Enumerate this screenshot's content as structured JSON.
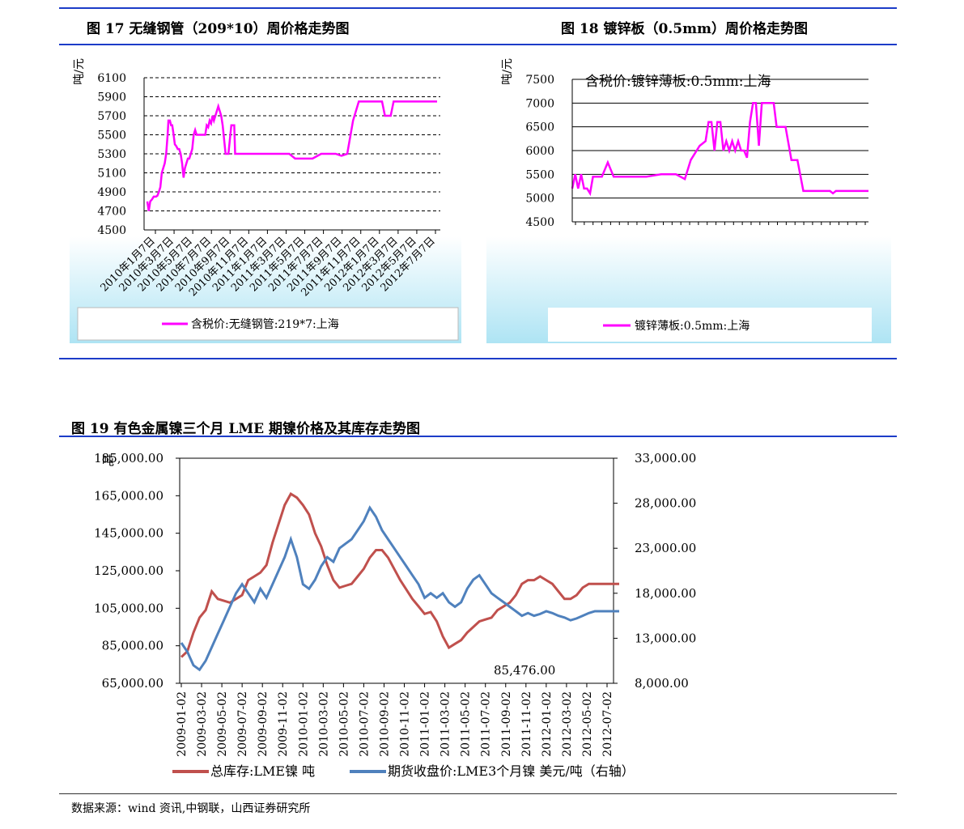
{
  "fig17": {
    "caption": "图 17 无缝钢管（209*10）周价格走势图",
    "unit": "吨/元",
    "legend": "含税价:无缝钢管:219*7:上海",
    "color": "#ff00ff"
  },
  "fig18": {
    "caption": "图 18 镀锌板（0.5mm）周价格走势图",
    "unit": "吨/元",
    "series_title": "含税价:镀锌薄板:0.5mm:上海",
    "legend": "镀锌薄板:0.5mm:上海",
    "color": "#ff00ff"
  },
  "fig19": {
    "caption": "图 19 有色金属镍三个月 LME 期镍价格及其库存走势图",
    "left_unit": "吨",
    "annotation": "85,476.00",
    "legend_inventory": "总库存:LME镍 吨",
    "legend_price": "期货收盘价:LME3个月镍 美元/吨（右轴）",
    "inventory_color": "#c0504d",
    "price_color": "#4f81bd"
  },
  "source": "数据来源：wind 资讯,中钢联，山西证券研究所",
  "chart_data": [
    {
      "type": "line",
      "title": "图 17 无缝钢管（209*10）周价格走势图",
      "ylabel": "吨/元",
      "ylim": [
        4500,
        6100
      ],
      "yticks": [
        4500,
        4700,
        4900,
        5100,
        5300,
        5500,
        5700,
        5900,
        6100
      ],
      "xticks": [
        "2010年1月7日",
        "2010年3月7日",
        "2010年5月7日",
        "2010年7月7日",
        "2010年9月7日",
        "2010年11月7日",
        "2011年1月7日",
        "2011年3月7日",
        "2011年5月7日",
        "2011年7月7日",
        "2011年9月7日",
        "2011年11月7日",
        "2012年1月7日",
        "2012年3月7日",
        "2012年5月7日",
        "2012年7月7日"
      ],
      "grid": true,
      "legend_position": "bottom",
      "series": [
        {
          "name": "含税价:无缝钢管:219*7:上海",
          "x": [
            0,
            0.5,
            1,
            1.6,
            2.2,
            3,
            3.5,
            4,
            4.5,
            5,
            5.5,
            6,
            6.5,
            7,
            7.3,
            7.8,
            8.2,
            8.6,
            9,
            9.5,
            10,
            10.5,
            11,
            11.5,
            12,
            12.5,
            13,
            13.5,
            14,
            14.5,
            15,
            15.5,
            16,
            16.5,
            17,
            17.5,
            18,
            18.5,
            19,
            19.5,
            20,
            20.5,
            21,
            21.5,
            22,
            22.5,
            23,
            23.5,
            24,
            24.5,
            25,
            25.5,
            26,
            27,
            28,
            29,
            30,
            30.3,
            30.7,
            31,
            31.5,
            32,
            32.5,
            33,
            33.5,
            34,
            34.5,
            35,
            35.5,
            36,
            37,
            38,
            40,
            43,
            45,
            47,
            49,
            51,
            53,
            55,
            57,
            60,
            63,
            65,
            67,
            69,
            71,
            73,
            75,
            77,
            79,
            80,
            81,
            82,
            83,
            84,
            85,
            86,
            87,
            88,
            89,
            90,
            91,
            92,
            93,
            94,
            95,
            96,
            97,
            98,
            99,
            100
          ],
          "y": [
            4800,
            4700,
            4800,
            4820,
            4850,
            4850,
            4860,
            4900,
            4950,
            5100,
            5150,
            5200,
            5300,
            5500,
            5650,
            5650,
            5600,
            5600,
            5520,
            5400,
            5380,
            5350,
            5350,
            5300,
            5200,
            5050,
            5150,
            5200,
            5250,
            5250,
            5300,
            5350,
            5500,
            5550,
            5500,
            5500,
            5500,
            5500,
            5500,
            5500,
            5500,
            5600,
            5580,
            5650,
            5620,
            5700,
            5650,
            5700,
            5750,
            5800,
            5750,
            5700,
            5600,
            5300,
            5300,
            5600,
            5600,
            5300,
            5300,
            5300,
            5300,
            5300,
            5300,
            5300,
            5300,
            5300,
            5300,
            5300,
            5300,
            5300,
            5300,
            5300,
            5300,
            5300,
            5300,
            5300,
            5300,
            5250,
            5250,
            5250,
            5250,
            5300,
            5300,
            5300,
            5280,
            5300,
            5650,
            5850,
            5850,
            5850,
            5850,
            5850,
            5850,
            5700,
            5700,
            5700,
            5850,
            5850,
            5850,
            5850,
            5850,
            5850,
            5850,
            5850,
            5850,
            5850,
            5850,
            5850,
            5850,
            5850,
            5850,
            5850
          ]
        }
      ]
    },
    {
      "type": "line",
      "title": "图 18 镀锌板（0.5mm）周价格走势图",
      "ylabel": "吨/元",
      "ylim": [
        4500,
        7500
      ],
      "yticks": [
        4500,
        5000,
        5500,
        6000,
        6500,
        7000,
        7500
      ],
      "grid": true,
      "legend_position": "bottom",
      "series": [
        {
          "name": "镀锌薄板:0.5mm:上海",
          "x": [
            0,
            1,
            2,
            3,
            4,
            5,
            6,
            7,
            8,
            9,
            10,
            12,
            14,
            15,
            16,
            18,
            20,
            25,
            30,
            35,
            38,
            40,
            43,
            45,
            46,
            47,
            48,
            49,
            50,
            51,
            52,
            53,
            54,
            55,
            56,
            57,
            58,
            59,
            60,
            61,
            62,
            63,
            64,
            65,
            66,
            67,
            68,
            69,
            70,
            71,
            72,
            74,
            76,
            78,
            80,
            82,
            84,
            85,
            86,
            87,
            88,
            89,
            90,
            91,
            92,
            93,
            94,
            95,
            96,
            97,
            98,
            99,
            100
          ],
          "y": [
            5200,
            5500,
            5200,
            5500,
            5200,
            5200,
            5100,
            5450,
            5450,
            5450,
            5450,
            5750,
            5450,
            5450,
            5450,
            5450,
            5450,
            5450,
            5500,
            5500,
            5400,
            5800,
            6100,
            6200,
            6600,
            6600,
            6000,
            6600,
            6600,
            6000,
            6200,
            6000,
            6200,
            6000,
            6200,
            6000,
            6000,
            5850,
            6600,
            7000,
            7000,
            6100,
            7000,
            7000,
            7000,
            7000,
            7000,
            6500,
            6500,
            6500,
            6500,
            5800,
            5800,
            5150,
            5150,
            5150,
            5150,
            5150,
            5150,
            5150,
            5100,
            5150,
            5150,
            5150,
            5150,
            5150,
            5150,
            5150,
            5150,
            5150,
            5150,
            5150,
            5150
          ]
        }
      ]
    },
    {
      "type": "line",
      "title": "图 19 有色金属镍三个月 LME 期镍价格及其库存走势图",
      "ylabel": "吨",
      "ylim": [
        65000,
        185000
      ],
      "y2lim": [
        8000,
        33000
      ],
      "yticks": [
        65000,
        85000,
        105000,
        125000,
        145000,
        165000,
        185000
      ],
      "y2ticks": [
        8000,
        13000,
        18000,
        23000,
        28000,
        33000
      ],
      "xticks": [
        "2009-01-02",
        "2009-03-02",
        "2009-05-02",
        "2009-07-02",
        "2009-09-02",
        "2009-11-02",
        "2010-01-02",
        "2010-03-02",
        "2010-05-02",
        "2010-07-02",
        "2010-09-02",
        "2010-11-02",
        "2011-01-02",
        "2011-03-02",
        "2011-05-02",
        "2011-07-02",
        "2011-09-02",
        "2011-11-02",
        "2012-01-02",
        "2012-03-02",
        "2012-05-02",
        "2012-07-02"
      ],
      "annotation": "85,476.00",
      "legend_position": "bottom",
      "series": [
        {
          "name": "总库存:LME镍 吨",
          "axis": "left",
          "x": [
            0,
            0.3,
            0.6,
            0.9,
            1.2,
            1.5,
            1.8,
            2.1,
            2.4,
            2.7,
            3.0,
            3.3,
            3.6,
            3.9,
            4.2,
            4.5,
            4.8,
            5.1,
            5.4,
            5.7,
            6.0,
            6.3,
            6.6,
            6.9,
            7.2,
            7.5,
            7.8,
            8.1,
            8.4,
            8.7,
            9.0,
            9.3,
            9.6,
            9.9,
            10.2,
            10.5,
            10.8,
            11.1,
            11.4,
            11.7,
            12.0,
            12.3,
            12.6,
            12.9,
            13.2,
            13.5,
            13.8,
            14.1,
            14.4,
            14.7,
            15.0,
            15.3,
            15.6,
            15.9,
            16.2,
            16.5,
            16.8,
            17.1,
            17.4,
            17.7,
            18.0,
            18.3,
            18.6,
            18.9,
            19.2,
            19.5,
            19.8,
            20.1,
            20.4,
            20.7,
            21.0,
            21.3,
            21.6
          ],
          "y": [
            79000,
            82000,
            92000,
            100000,
            104000,
            114000,
            110000,
            109000,
            108000,
            110000,
            112000,
            120000,
            122000,
            124000,
            128000,
            140000,
            150000,
            160000,
            166000,
            164000,
            160000,
            155000,
            145000,
            138000,
            128000,
            120000,
            116000,
            117000,
            118000,
            122000,
            126000,
            132000,
            136000,
            136000,
            132000,
            126000,
            120000,
            115000,
            110000,
            106000,
            102000,
            103000,
            98000,
            90000,
            84000,
            86000,
            88000,
            92000,
            95000,
            98000,
            99000,
            100000,
            104000,
            106000,
            108000,
            112000,
            118000,
            120000,
            120000,
            122000,
            120000,
            118000,
            114000,
            110000,
            110000,
            112000,
            116000,
            118000,
            118000,
            118000,
            118000,
            118000,
            118000
          ]
        },
        {
          "name": "期货收盘价:LME3个月镍 美元/吨（右轴）",
          "axis": "right",
          "x": [
            0,
            0.3,
            0.6,
            0.9,
            1.2,
            1.5,
            1.8,
            2.1,
            2.4,
            2.7,
            3.0,
            3.3,
            3.6,
            3.9,
            4.2,
            4.5,
            4.8,
            5.1,
            5.4,
            5.7,
            6.0,
            6.3,
            6.6,
            6.9,
            7.2,
            7.5,
            7.8,
            8.1,
            8.4,
            8.7,
            9.0,
            9.3,
            9.6,
            9.9,
            10.2,
            10.5,
            10.8,
            11.1,
            11.4,
            11.7,
            12.0,
            12.3,
            12.6,
            12.9,
            13.2,
            13.5,
            13.8,
            14.1,
            14.4,
            14.7,
            15.0,
            15.3,
            15.6,
            15.9,
            16.2,
            16.5,
            16.8,
            17.1,
            17.4,
            17.7,
            18.0,
            18.3,
            18.6,
            18.9,
            19.2,
            19.5,
            19.8,
            20.1,
            20.4,
            20.7,
            21.0,
            21.3,
            21.6
          ],
          "y": [
            12500,
            11500,
            10000,
            9500,
            10500,
            12000,
            13500,
            15000,
            16500,
            18000,
            19000,
            18000,
            17000,
            18500,
            17500,
            19000,
            20500,
            22000,
            24000,
            22000,
            19000,
            18500,
            19500,
            21000,
            22000,
            21500,
            23000,
            23500,
            24000,
            25000,
            26000,
            27500,
            26500,
            25000,
            24000,
            23000,
            22000,
            21000,
            20000,
            19000,
            17500,
            18000,
            17500,
            18000,
            17000,
            16500,
            17000,
            18500,
            19500,
            20000,
            19000,
            18000,
            17500,
            17000,
            16500,
            16000,
            15500,
            15800,
            15500,
            15700,
            16000,
            15800,
            15500,
            15300,
            15000,
            15200,
            15500,
            15800,
            16000,
            16000,
            16000,
            16000,
            16000
          ]
        }
      ]
    }
  ]
}
